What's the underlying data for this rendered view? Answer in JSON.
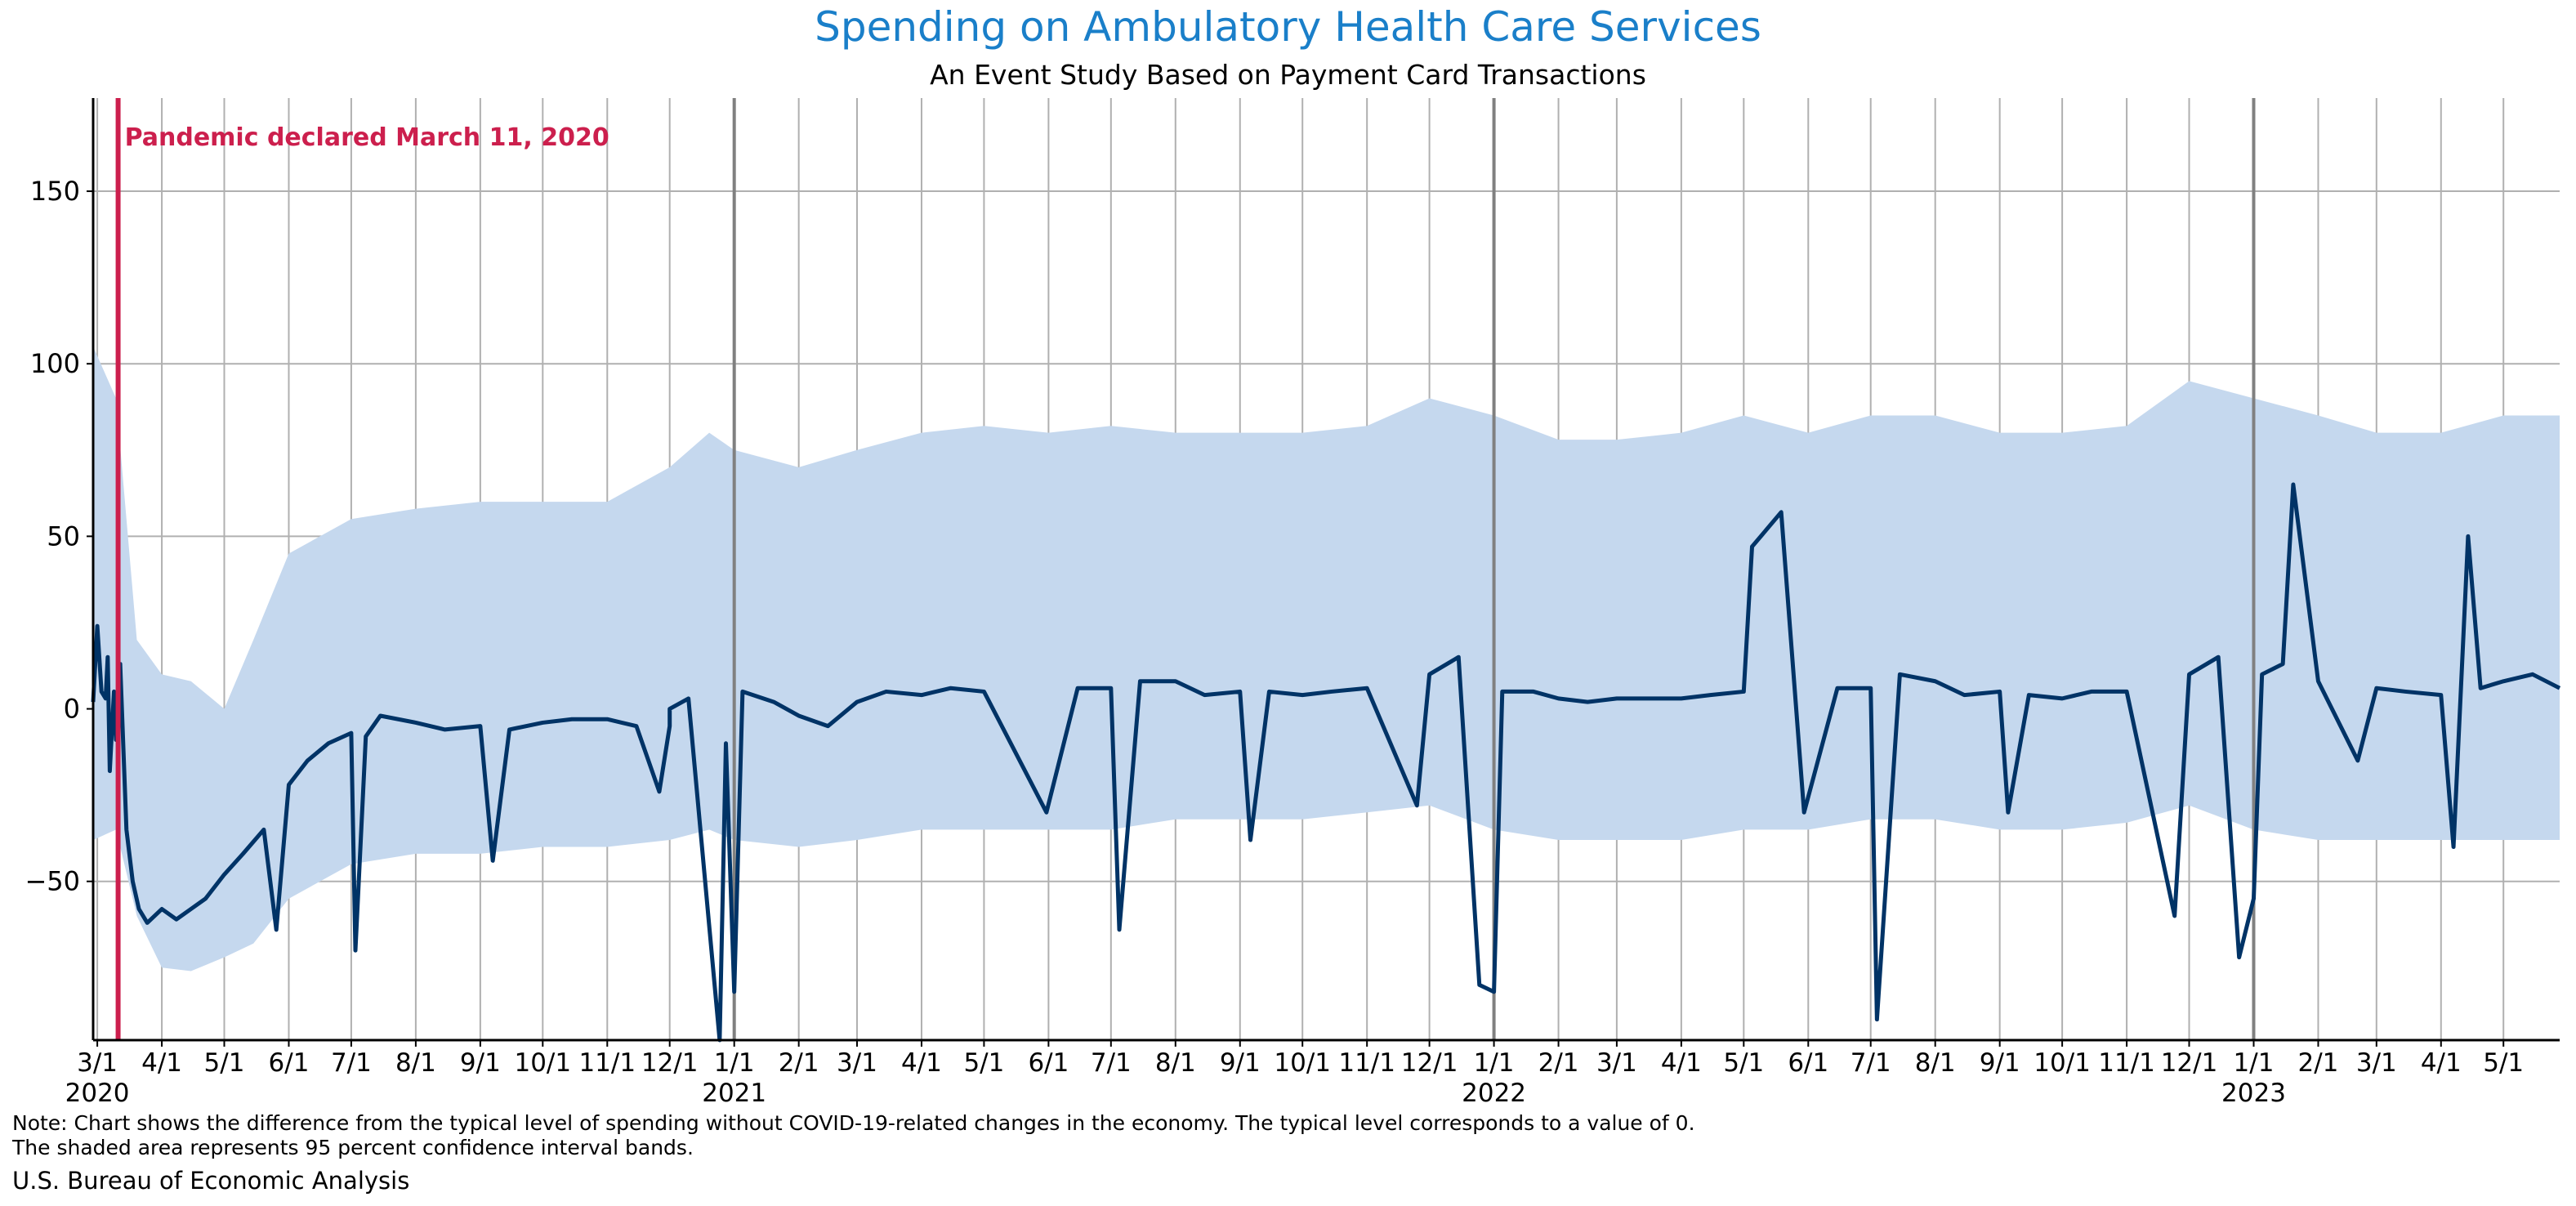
{
  "title": "Spending on Ambulatory Health Care Services",
  "subtitle": "An Event Study Based on Payment Card Transactions",
  "note_line1": "Note: Chart shows the difference from the typical level of spending without COVID-19-related changes in the economy. The typical level corresponds to a value of 0.",
  "note_line2": "The shaded area represents 95 percent confidence interval bands.",
  "source": "U.S. Bureau of Economic Analysis",
  "colors": {
    "title": "#1a7fc9",
    "line": "#003366",
    "band": "#c5d8ee",
    "event": "#cc1f4d",
    "grid": "#b0b0b0",
    "year_line": "#808080"
  },
  "chart_data": {
    "type": "line",
    "title": "Spending on Ambulatory Health Care Services",
    "subtitle": "An Event Study Based on Payment Card Transactions",
    "xlabel": "",
    "ylabel": "",
    "x_range": [
      "2020-02-28",
      "2023-05-28"
    ],
    "ylim": [
      -96,
      177
    ],
    "yticks": [
      150,
      100,
      50,
      0,
      -50
    ],
    "ytick_labels": [
      "150",
      "100",
      "50",
      "0",
      "−50"
    ],
    "grid": true,
    "event": {
      "date": "2020-03-11",
      "label": "Pandemic declared March 11, 2020"
    },
    "year_boundaries": [
      "2021-01-01",
      "2022-01-01",
      "2023-01-01"
    ],
    "x_ticks": [
      {
        "date": "2020-03-01",
        "label": "3/1",
        "year": "2020"
      },
      {
        "date": "2020-04-01",
        "label": "4/1"
      },
      {
        "date": "2020-05-01",
        "label": "5/1"
      },
      {
        "date": "2020-06-01",
        "label": "6/1"
      },
      {
        "date": "2020-07-01",
        "label": "7/1"
      },
      {
        "date": "2020-08-01",
        "label": "8/1"
      },
      {
        "date": "2020-09-01",
        "label": "9/1"
      },
      {
        "date": "2020-10-01",
        "label": "10/1"
      },
      {
        "date": "2020-11-01",
        "label": "11/1"
      },
      {
        "date": "2020-12-01",
        "label": "12/1"
      },
      {
        "date": "2021-01-01",
        "label": "1/1",
        "year": "2021"
      },
      {
        "date": "2021-02-01",
        "label": "2/1"
      },
      {
        "date": "2021-03-01",
        "label": "3/1"
      },
      {
        "date": "2021-04-01",
        "label": "4/1"
      },
      {
        "date": "2021-05-01",
        "label": "5/1"
      },
      {
        "date": "2021-06-01",
        "label": "6/1"
      },
      {
        "date": "2021-07-01",
        "label": "7/1"
      },
      {
        "date": "2021-08-01",
        "label": "8/1"
      },
      {
        "date": "2021-09-01",
        "label": "9/1"
      },
      {
        "date": "2021-10-01",
        "label": "10/1"
      },
      {
        "date": "2021-11-01",
        "label": "11/1"
      },
      {
        "date": "2021-12-01",
        "label": "12/1"
      },
      {
        "date": "2022-01-01",
        "label": "1/1",
        "year": "2022"
      },
      {
        "date": "2022-02-01",
        "label": "2/1"
      },
      {
        "date": "2022-03-01",
        "label": "3/1"
      },
      {
        "date": "2022-04-01",
        "label": "4/1"
      },
      {
        "date": "2022-05-01",
        "label": "5/1"
      },
      {
        "date": "2022-06-01",
        "label": "6/1"
      },
      {
        "date": "2022-07-01",
        "label": "7/1"
      },
      {
        "date": "2022-08-01",
        "label": "8/1"
      },
      {
        "date": "2022-09-01",
        "label": "9/1"
      },
      {
        "date": "2022-10-01",
        "label": "10/1"
      },
      {
        "date": "2022-11-01",
        "label": "11/1"
      },
      {
        "date": "2022-12-01",
        "label": "12/1"
      },
      {
        "date": "2023-01-01",
        "label": "1/1",
        "year": "2023"
      },
      {
        "date": "2023-02-01",
        "label": "2/1"
      },
      {
        "date": "2023-03-01",
        "label": "3/1"
      },
      {
        "date": "2023-04-01",
        "label": "4/1"
      },
      {
        "date": "2023-05-01",
        "label": "5/1"
      }
    ],
    "series": [
      {
        "type": "line",
        "points": [
          [
            "2020-02-28",
            2
          ],
          [
            "2020-03-01",
            24
          ],
          [
            "2020-03-03",
            5
          ],
          [
            "2020-03-05",
            3
          ],
          [
            "2020-03-06",
            15
          ],
          [
            "2020-03-07",
            -18
          ],
          [
            "2020-03-09",
            5
          ],
          [
            "2020-03-10",
            -9
          ],
          [
            "2020-03-12",
            13
          ],
          [
            "2020-03-15",
            -35
          ],
          [
            "2020-03-18",
            -50
          ],
          [
            "2020-03-21",
            -58
          ],
          [
            "2020-03-25",
            -62
          ],
          [
            "2020-04-01",
            -58
          ],
          [
            "2020-04-08",
            -61
          ],
          [
            "2020-04-15",
            -58
          ],
          [
            "2020-04-22",
            -55
          ],
          [
            "2020-05-01",
            -48
          ],
          [
            "2020-05-10",
            -42
          ],
          [
            "2020-05-20",
            -35
          ],
          [
            "2020-05-26",
            -64
          ],
          [
            "2020-06-01",
            -22
          ],
          [
            "2020-06-10",
            -15
          ],
          [
            "2020-06-20",
            -10
          ],
          [
            "2020-07-01",
            -7
          ],
          [
            "2020-07-03",
            -70
          ],
          [
            "2020-07-08",
            -8
          ],
          [
            "2020-07-15",
            -2
          ],
          [
            "2020-08-01",
            -4
          ],
          [
            "2020-08-15",
            -6
          ],
          [
            "2020-09-01",
            -5
          ],
          [
            "2020-09-07",
            -44
          ],
          [
            "2020-09-15",
            -6
          ],
          [
            "2020-10-01",
            -4
          ],
          [
            "2020-10-15",
            -3
          ],
          [
            "2020-11-01",
            -3
          ],
          [
            "2020-11-15",
            -5
          ],
          [
            "2020-11-26",
            -24
          ],
          [
            "2020-12-01",
            -5
          ],
          [
            "2020-12-01",
            0
          ],
          [
            "2020-12-10",
            3
          ],
          [
            "2020-12-25",
            -96
          ],
          [
            "2020-12-28",
            -10
          ],
          [
            "2021-01-01",
            -82
          ],
          [
            "2021-01-05",
            5
          ],
          [
            "2021-01-20",
            2
          ],
          [
            "2021-02-01",
            -2
          ],
          [
            "2021-02-15",
            -5
          ],
          [
            "2021-03-01",
            2
          ],
          [
            "2021-03-15",
            5
          ],
          [
            "2021-04-01",
            4
          ],
          [
            "2021-04-15",
            6
          ],
          [
            "2021-05-01",
            5
          ],
          [
            "2021-05-31",
            -30
          ],
          [
            "2021-06-15",
            6
          ],
          [
            "2021-07-01",
            6
          ],
          [
            "2021-07-05",
            -64
          ],
          [
            "2021-07-15",
            8
          ],
          [
            "2021-08-01",
            8
          ],
          [
            "2021-08-15",
            4
          ],
          [
            "2021-09-01",
            5
          ],
          [
            "2021-09-06",
            -38
          ],
          [
            "2021-09-15",
            5
          ],
          [
            "2021-10-01",
            4
          ],
          [
            "2021-10-15",
            5
          ],
          [
            "2021-11-01",
            6
          ],
          [
            "2021-11-25",
            -28
          ],
          [
            "2021-12-01",
            10
          ],
          [
            "2021-12-15",
            15
          ],
          [
            "2021-12-25",
            -80
          ],
          [
            "2022-01-01",
            -82
          ],
          [
            "2022-01-05",
            5
          ],
          [
            "2022-01-20",
            5
          ],
          [
            "2022-02-01",
            3
          ],
          [
            "2022-02-15",
            2
          ],
          [
            "2022-03-01",
            3
          ],
          [
            "2022-03-15",
            3
          ],
          [
            "2022-04-01",
            3
          ],
          [
            "2022-04-15",
            4
          ],
          [
            "2022-05-01",
            5
          ],
          [
            "2022-05-05",
            47
          ],
          [
            "2022-05-19",
            57
          ],
          [
            "2022-05-30",
            -30
          ],
          [
            "2022-06-15",
            6
          ],
          [
            "2022-07-01",
            6
          ],
          [
            "2022-07-04",
            -90
          ],
          [
            "2022-07-15",
            10
          ],
          [
            "2022-08-01",
            8
          ],
          [
            "2022-08-15",
            4
          ],
          [
            "2022-09-01",
            5
          ],
          [
            "2022-09-05",
            -30
          ],
          [
            "2022-09-15",
            4
          ],
          [
            "2022-10-01",
            3
          ],
          [
            "2022-10-15",
            5
          ],
          [
            "2022-11-01",
            5
          ],
          [
            "2022-11-24",
            -60
          ],
          [
            "2022-12-01",
            10
          ],
          [
            "2022-12-15",
            15
          ],
          [
            "2022-12-25",
            -72
          ],
          [
            "2023-01-01",
            -55
          ],
          [
            "2023-01-05",
            10
          ],
          [
            "2023-01-15",
            13
          ],
          [
            "2023-01-20",
            65
          ],
          [
            "2023-02-01",
            8
          ],
          [
            "2023-02-20",
            -15
          ],
          [
            "2023-03-01",
            6
          ],
          [
            "2023-03-15",
            5
          ],
          [
            "2023-04-01",
            4
          ],
          [
            "2023-04-07",
            -40
          ],
          [
            "2023-04-14",
            50
          ],
          [
            "2023-04-20",
            6
          ],
          [
            "2023-05-01",
            8
          ],
          [
            "2023-05-15",
            10
          ],
          [
            "2023-05-28",
            6
          ]
        ]
      },
      {
        "type": "band",
        "points": [
          [
            "2020-02-28",
            -38,
            105
          ],
          [
            "2020-03-10",
            -35,
            90
          ],
          [
            "2020-03-20",
            -60,
            20
          ],
          [
            "2020-04-01",
            -75,
            10
          ],
          [
            "2020-04-15",
            -76,
            8
          ],
          [
            "2020-05-01",
            -72,
            0
          ],
          [
            "2020-05-15",
            -68,
            20
          ],
          [
            "2020-06-01",
            -55,
            45
          ],
          [
            "2020-07-01",
            -45,
            55
          ],
          [
            "2020-08-01",
            -42,
            58
          ],
          [
            "2020-09-01",
            -42,
            60
          ],
          [
            "2020-10-01",
            -40,
            60
          ],
          [
            "2020-11-01",
            -40,
            60
          ],
          [
            "2020-12-01",
            -38,
            70
          ],
          [
            "2020-12-20",
            -35,
            80
          ],
          [
            "2021-01-01",
            -38,
            75
          ],
          [
            "2021-02-01",
            -40,
            70
          ],
          [
            "2021-03-01",
            -38,
            75
          ],
          [
            "2021-04-01",
            -35,
            80
          ],
          [
            "2021-05-01",
            -35,
            82
          ],
          [
            "2021-06-01",
            -35,
            80
          ],
          [
            "2021-07-01",
            -35,
            82
          ],
          [
            "2021-08-01",
            -32,
            80
          ],
          [
            "2021-09-01",
            -32,
            80
          ],
          [
            "2021-10-01",
            -32,
            80
          ],
          [
            "2021-11-01",
            -30,
            82
          ],
          [
            "2021-12-01",
            -28,
            90
          ],
          [
            "2022-01-01",
            -35,
            85
          ],
          [
            "2022-02-01",
            -38,
            78
          ],
          [
            "2022-03-01",
            -38,
            78
          ],
          [
            "2022-04-01",
            -38,
            80
          ],
          [
            "2022-05-01",
            -35,
            85
          ],
          [
            "2022-06-01",
            -35,
            80
          ],
          [
            "2022-07-01",
            -32,
            85
          ],
          [
            "2022-08-01",
            -32,
            85
          ],
          [
            "2022-09-01",
            -35,
            80
          ],
          [
            "2022-10-01",
            -35,
            80
          ],
          [
            "2022-11-01",
            -33,
            82
          ],
          [
            "2022-12-01",
            -28,
            95
          ],
          [
            "2023-01-01",
            -35,
            90
          ],
          [
            "2023-02-01",
            -38,
            85
          ],
          [
            "2023-03-01",
            -38,
            80
          ],
          [
            "2023-04-01",
            -38,
            80
          ],
          [
            "2023-05-01",
            -38,
            85
          ],
          [
            "2023-05-28",
            -38,
            85
          ]
        ]
      }
    ]
  }
}
